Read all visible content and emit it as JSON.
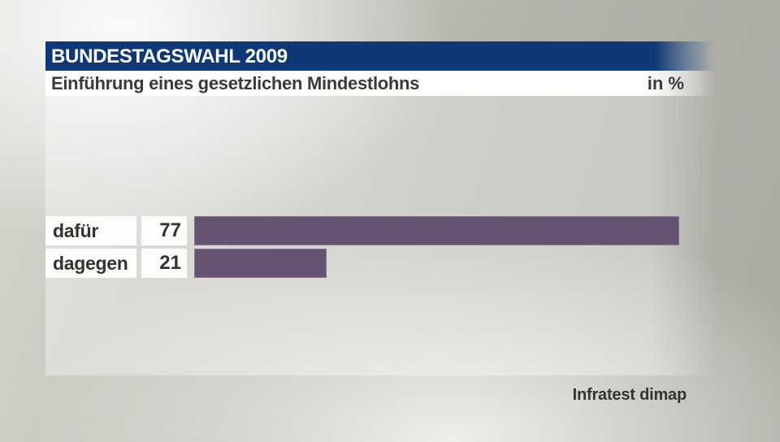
{
  "header": {
    "title": "BUNDESTAGSWAHL 2009",
    "subtitle": "Einführung eines gesetzlichen Mindestlohns",
    "unit_label": "in %"
  },
  "chart_data": {
    "type": "bar",
    "orientation": "horizontal",
    "title": "Einführung eines gesetzlichen Mindestlohns",
    "unit": "%",
    "categories": [
      "dafür",
      "dagegen"
    ],
    "values": [
      77,
      21
    ],
    "xlim": [
      0,
      100
    ],
    "value_labels_shown": true,
    "bar_color": "#655371",
    "legend": "none",
    "grid": "off"
  },
  "footer": {
    "source": "Infratest dimap"
  },
  "colors": {
    "title_bar_blue": "#0f3877",
    "bar_purple": "#655371",
    "box_white": "#fdfdfb",
    "text_dark": "#34342f",
    "title_text": "#ffffff"
  }
}
